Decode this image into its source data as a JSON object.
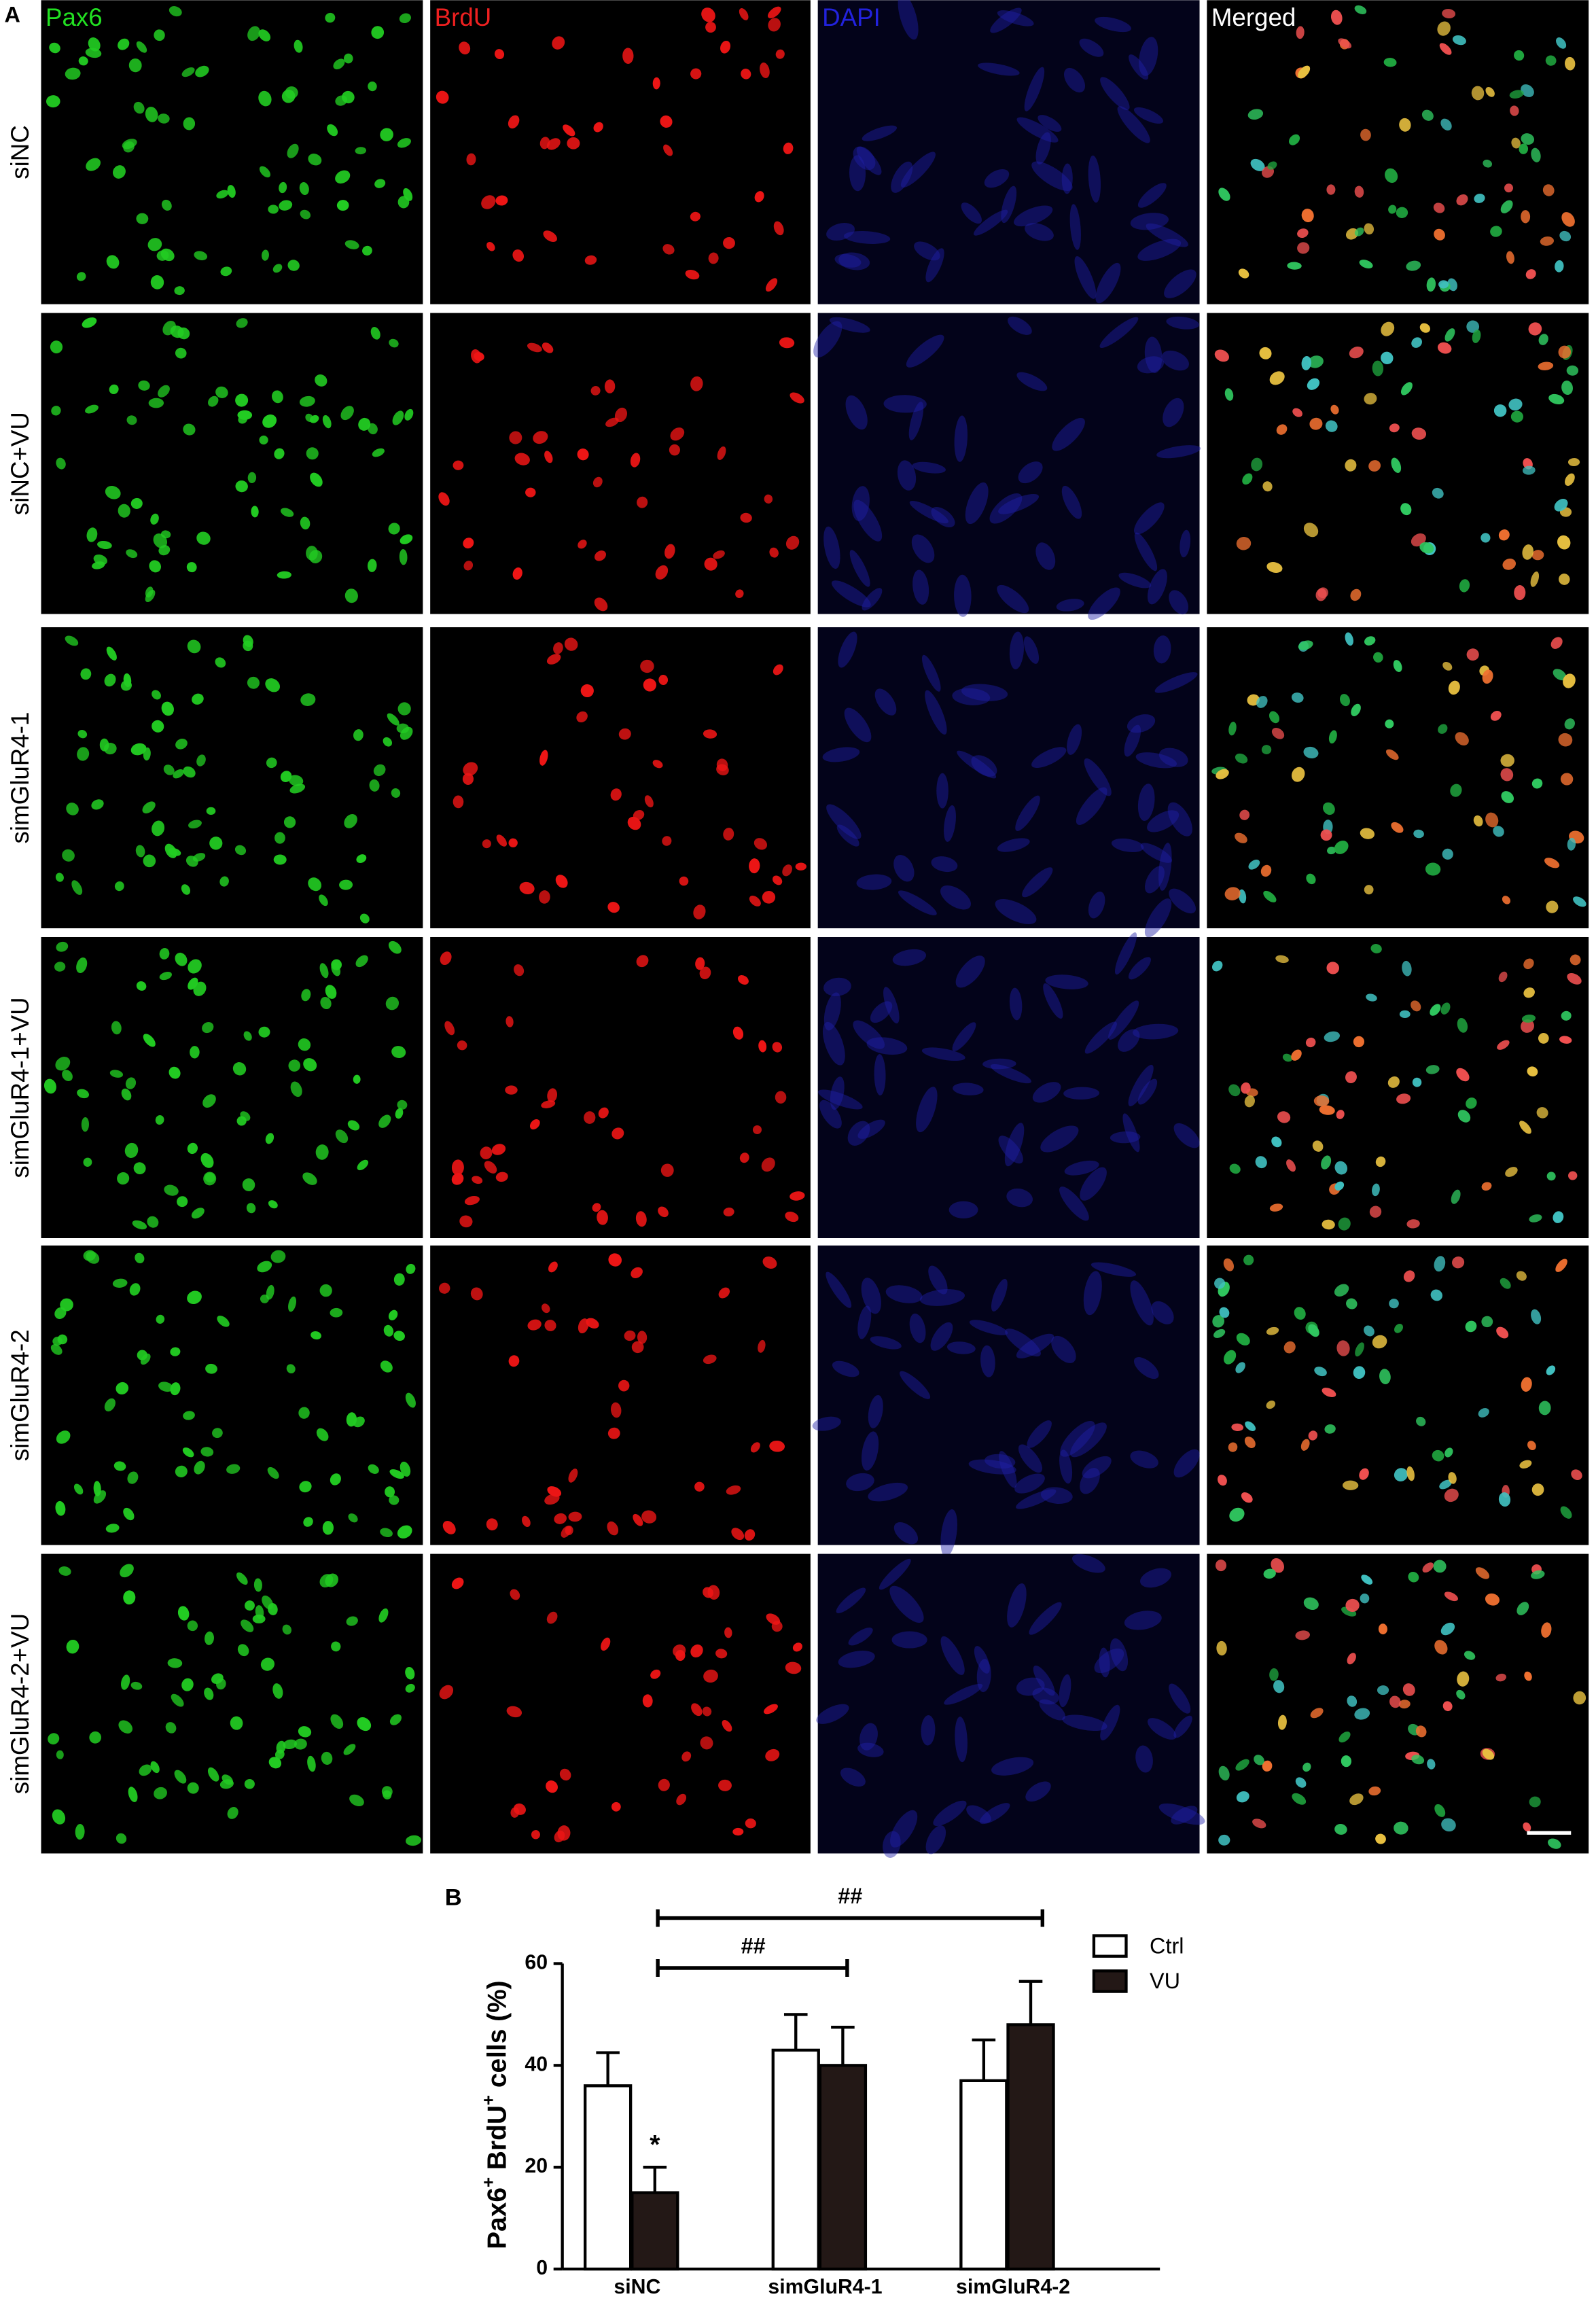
{
  "panel_a": {
    "label": "A",
    "columns": [
      "Pax6",
      "BrdU",
      "DAPI",
      "Merged"
    ],
    "rows": [
      "siNC",
      "siNC+VU",
      "simGluR4-1",
      "simGluR4-1+VU",
      "simGluR4-2",
      "simGluR4-2+VU"
    ]
  },
  "chart_data": {
    "type": "bar",
    "panel_label": "B",
    "ylabel": [
      "Pax6",
      "+",
      "BrdU",
      "+",
      "cells (%)"
    ],
    "ylabel_superscript": [
      false,
      true,
      false,
      true,
      false
    ],
    "categories": [
      "siNC",
      "simGluR4-1",
      "simGluR4-2"
    ],
    "series": [
      {
        "name": "Ctrl",
        "color": "#ffffff",
        "values": [
          36,
          43,
          37
        ],
        "errors": [
          6.5,
          7,
          8
        ]
      },
      {
        "name": "VU",
        "color": "#231816",
        "values": [
          15,
          40,
          48
        ],
        "errors": [
          5,
          7.5,
          8.5
        ]
      }
    ],
    "ylim": [
      0,
      60
    ],
    "yticks": [
      0,
      20,
      40,
      60
    ],
    "annotations": [
      "*",
      "##",
      "##"
    ],
    "legend": "upper right"
  }
}
